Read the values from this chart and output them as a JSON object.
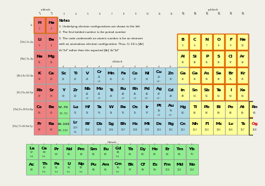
{
  "bg": "#f0f0e8",
  "s_color": "#f08080",
  "p_color": "#ffff99",
  "d_color": "#add8e6",
  "f_color": "#90ee90",
  "white": "#ffffff",
  "notes_lines": [
    "Notes",
    "1. Underlying electron configurations are shown to the left",
    "2. The first bolded number is the period number",
    "3. The code underneath an atomic number is for an element",
    "with an anomalous electron configuration. Thus, Cr 24 is [Ar]",
    "4s¹3d⁵ rather than the expected [Ar] 4s²3d⁴"
  ],
  "period_labels": [
    "1s",
    "[He] 2s,2p",
    "[Ne] 3s,3p",
    "[Ar] 4s,3d,4p",
    "[Kr] 5s,4d,5p",
    "[Xe] 6s,4f,5d,6p",
    "[Rn] 7s,5f,6d,7p"
  ],
  "elements": [
    {
      "sym": "H",
      "num": "1",
      "row": 1,
      "col": 1,
      "blk": "s",
      "scope": true
    },
    {
      "sym": "He",
      "num": "2",
      "row": 1,
      "col": 2,
      "blk": "s",
      "scope": true
    },
    {
      "sym": "Li",
      "num": "3",
      "row": 2,
      "col": 1,
      "blk": "s",
      "scope": false
    },
    {
      "sym": "Be",
      "num": "4",
      "row": 2,
      "col": 2,
      "blk": "s",
      "scope": false
    },
    {
      "sym": "B",
      "num": "5",
      "row": 2,
      "col": 13,
      "blk": "p",
      "scope": true
    },
    {
      "sym": "C",
      "num": "6",
      "row": 2,
      "col": 14,
      "blk": "p",
      "scope": true
    },
    {
      "sym": "N",
      "num": "7",
      "row": 2,
      "col": 15,
      "blk": "p",
      "scope": true
    },
    {
      "sym": "O",
      "num": "8",
      "row": 2,
      "col": 16,
      "blk": "p",
      "scope": true
    },
    {
      "sym": "F",
      "num": "9",
      "row": 2,
      "col": 17,
      "blk": "p",
      "scope": true
    },
    {
      "sym": "Ne",
      "num": "10",
      "row": 2,
      "col": 18,
      "blk": "p",
      "scope": true
    },
    {
      "sym": "Na",
      "num": "11",
      "row": 3,
      "col": 1,
      "blk": "s",
      "scope": false
    },
    {
      "sym": "Mg",
      "num": "12",
      "row": 3,
      "col": 2,
      "blk": "s",
      "scope": false
    },
    {
      "sym": "Al",
      "num": "13",
      "row": 3,
      "col": 13,
      "blk": "p",
      "scope": false
    },
    {
      "sym": "Si",
      "num": "14",
      "row": 3,
      "col": 14,
      "blk": "p",
      "scope": true
    },
    {
      "sym": "P",
      "num": "15",
      "row": 3,
      "col": 15,
      "blk": "p",
      "scope": true
    },
    {
      "sym": "S",
      "num": "16",
      "row": 3,
      "col": 16,
      "blk": "p",
      "scope": true
    },
    {
      "sym": "Cl",
      "num": "17",
      "row": 3,
      "col": 17,
      "blk": "p",
      "scope": true
    },
    {
      "sym": "Ar",
      "num": "18",
      "row": 3,
      "col": 18,
      "blk": "p",
      "scope": true
    },
    {
      "sym": "K",
      "num": "19",
      "row": 4,
      "col": 1,
      "blk": "s",
      "scope": false
    },
    {
      "sym": "Ca",
      "num": "20",
      "row": 4,
      "col": 2,
      "blk": "s",
      "scope": false
    },
    {
      "sym": "Sc",
      "num": "21",
      "row": 4,
      "col": 3,
      "blk": "d",
      "scope": false
    },
    {
      "sym": "Ti",
      "num": "22",
      "row": 4,
      "col": 4,
      "blk": "d",
      "scope": false
    },
    {
      "sym": "V",
      "num": "23",
      "row": 4,
      "col": 5,
      "blk": "d",
      "scope": false
    },
    {
      "sym": "Cr",
      "num": "24",
      "row": 4,
      "col": 6,
      "blk": "d",
      "scope": false,
      "sub": "s¹d⁵"
    },
    {
      "sym": "Mn",
      "num": "25",
      "row": 4,
      "col": 7,
      "blk": "d",
      "scope": false
    },
    {
      "sym": "Fe",
      "num": "26",
      "row": 4,
      "col": 8,
      "blk": "d",
      "scope": false
    },
    {
      "sym": "Co",
      "num": "27",
      "row": 4,
      "col": 9,
      "blk": "d",
      "scope": false
    },
    {
      "sym": "Ni",
      "num": "28",
      "row": 4,
      "col": 10,
      "blk": "d",
      "scope": false
    },
    {
      "sym": "Cu",
      "num": "29",
      "row": 4,
      "col": 11,
      "blk": "d",
      "scope": false,
      "sub": "s¹d¹⁰"
    },
    {
      "sym": "Zn",
      "num": "30",
      "row": 4,
      "col": 12,
      "blk": "d",
      "scope": false
    },
    {
      "sym": "Ga",
      "num": "31",
      "row": 4,
      "col": 13,
      "blk": "p",
      "scope": false
    },
    {
      "sym": "Ge",
      "num": "32",
      "row": 4,
      "col": 14,
      "blk": "p",
      "scope": true
    },
    {
      "sym": "As",
      "num": "33",
      "row": 4,
      "col": 15,
      "blk": "p",
      "scope": true
    },
    {
      "sym": "Se",
      "num": "34",
      "row": 4,
      "col": 16,
      "blk": "p",
      "scope": true
    },
    {
      "sym": "Br",
      "num": "35",
      "row": 4,
      "col": 17,
      "blk": "p",
      "scope": true
    },
    {
      "sym": "Kr",
      "num": "36",
      "row": 4,
      "col": 18,
      "blk": "p",
      "scope": true
    },
    {
      "sym": "Rb",
      "num": "37",
      "row": 5,
      "col": 1,
      "blk": "s",
      "scope": false
    },
    {
      "sym": "Sr",
      "num": "38",
      "row": 5,
      "col": 2,
      "blk": "s",
      "scope": false
    },
    {
      "sym": "Y",
      "num": "39",
      "row": 5,
      "col": 3,
      "blk": "d",
      "scope": false
    },
    {
      "sym": "Zr",
      "num": "40",
      "row": 5,
      "col": 4,
      "blk": "d",
      "scope": false
    },
    {
      "sym": "Nb",
      "num": "41",
      "row": 5,
      "col": 5,
      "blk": "d",
      "scope": false,
      "sub": "s¹d⁴"
    },
    {
      "sym": "Mo",
      "num": "42",
      "row": 5,
      "col": 6,
      "blk": "d",
      "scope": false,
      "sub": "s¹d⁵"
    },
    {
      "sym": "Tc",
      "num": "43",
      "row": 5,
      "col": 7,
      "blk": "d",
      "scope": false
    },
    {
      "sym": "Ru",
      "num": "44",
      "row": 5,
      "col": 8,
      "blk": "d",
      "scope": false,
      "sub": "s¹d⁷"
    },
    {
      "sym": "Rh",
      "num": "45",
      "row": 5,
      "col": 9,
      "blk": "d",
      "scope": false,
      "sub": "s¹d⁸"
    },
    {
      "sym": "Pd",
      "num": "46",
      "row": 5,
      "col": 10,
      "blk": "d",
      "scope": false,
      "sub": "s⁰d¹⁰"
    },
    {
      "sym": "Ag",
      "num": "47",
      "row": 5,
      "col": 11,
      "blk": "d",
      "scope": false,
      "sub": "s¹d¹⁰"
    },
    {
      "sym": "Cd",
      "num": "48",
      "row": 5,
      "col": 12,
      "blk": "d",
      "scope": false
    },
    {
      "sym": "In",
      "num": "49",
      "row": 5,
      "col": 13,
      "blk": "p",
      "scope": false
    },
    {
      "sym": "Sn",
      "num": "50",
      "row": 5,
      "col": 14,
      "blk": "p",
      "scope": false
    },
    {
      "sym": "Sb",
      "num": "51",
      "row": 5,
      "col": 15,
      "blk": "p",
      "scope": true
    },
    {
      "sym": "Te",
      "num": "52",
      "row": 5,
      "col": 16,
      "blk": "p",
      "scope": true
    },
    {
      "sym": "I",
      "num": "53",
      "row": 5,
      "col": 17,
      "blk": "p",
      "scope": true
    },
    {
      "sym": "Xe",
      "num": "54",
      "row": 5,
      "col": 18,
      "blk": "p",
      "scope": true
    },
    {
      "sym": "Cs",
      "num": "55",
      "row": 6,
      "col": 1,
      "blk": "s",
      "scope": false
    },
    {
      "sym": "Ba",
      "num": "56",
      "row": 6,
      "col": 2,
      "blk": "s",
      "scope": false
    },
    {
      "sym": "57–70",
      "num": "57–70",
      "row": 6,
      "col": 3,
      "blk": "fref",
      "scope": false
    },
    {
      "sym": "Lu",
      "num": "71",
      "row": 6,
      "col": 4,
      "blk": "d",
      "scope": false
    },
    {
      "sym": "Hf",
      "num": "72",
      "row": 6,
      "col": 5,
      "blk": "d",
      "scope": false
    },
    {
      "sym": "Ta",
      "num": "73",
      "row": 6,
      "col": 6,
      "blk": "d",
      "scope": false
    },
    {
      "sym": "W",
      "num": "74",
      "row": 6,
      "col": 7,
      "blk": "d",
      "scope": false
    },
    {
      "sym": "Re",
      "num": "75",
      "row": 6,
      "col": 8,
      "blk": "d",
      "scope": false
    },
    {
      "sym": "Os",
      "num": "76",
      "row": 6,
      "col": 9,
      "blk": "d",
      "scope": false
    },
    {
      "sym": "Ir",
      "num": "77",
      "row": 6,
      "col": 10,
      "blk": "d",
      "scope": false
    },
    {
      "sym": "Pt",
      "num": "78",
      "row": 6,
      "col": 11,
      "blk": "d",
      "scope": false,
      "sub": "s¹d⁹"
    },
    {
      "sym": "Au",
      "num": "79",
      "row": 6,
      "col": 12,
      "blk": "d",
      "scope": false,
      "sub": "s¹d¹⁰"
    },
    {
      "sym": "Hg",
      "num": "80",
      "row": 6,
      "col": 13,
      "blk": "d",
      "scope": false
    },
    {
      "sym": "Tl",
      "num": "81",
      "row": 6,
      "col": 14,
      "blk": "p",
      "scope": false
    },
    {
      "sym": "Pb",
      "num": "82",
      "row": 6,
      "col": 15,
      "blk": "p",
      "scope": false
    },
    {
      "sym": "Bi",
      "num": "83",
      "row": 6,
      "col": 16,
      "blk": "p",
      "scope": false
    },
    {
      "sym": "Po",
      "num": "84",
      "row": 6,
      "col": 17,
      "blk": "p",
      "scope": false
    },
    {
      "sym": "At",
      "num": "85",
      "row": 6,
      "col": 18,
      "blk": "p",
      "scope": false
    },
    {
      "sym": "Rn",
      "num": "86",
      "row": 6,
      "col": 19,
      "blk": "p",
      "scope": true,
      "box": true
    },
    {
      "sym": "Fr",
      "num": "87",
      "row": 7,
      "col": 1,
      "blk": "s",
      "scope": false
    },
    {
      "sym": "Ra",
      "num": "88",
      "row": 7,
      "col": 2,
      "blk": "s",
      "scope": false
    },
    {
      "sym": "89–102",
      "num": "89–102",
      "row": 7,
      "col": 3,
      "blk": "fref",
      "scope": false
    },
    {
      "sym": "Lr",
      "num": "103",
      "row": 7,
      "col": 4,
      "blk": "d",
      "scope": false,
      "sub": "d¹p"
    },
    {
      "sym": "Rf",
      "num": "104",
      "row": 7,
      "col": 5,
      "blk": "d",
      "scope": false
    },
    {
      "sym": "Db",
      "num": "105",
      "row": 7,
      "col": 6,
      "blk": "d",
      "scope": false
    },
    {
      "sym": "Sg",
      "num": "106",
      "row": 7,
      "col": 7,
      "blk": "d",
      "scope": false
    },
    {
      "sym": "Bh",
      "num": "107",
      "row": 7,
      "col": 8,
      "blk": "d",
      "scope": false
    },
    {
      "sym": "Hs",
      "num": "108",
      "row": 7,
      "col": 9,
      "blk": "d",
      "scope": false
    },
    {
      "sym": "Mt",
      "num": "109",
      "row": 7,
      "col": 10,
      "blk": "d",
      "scope": false
    },
    {
      "sym": "Ds",
      "num": "110",
      "row": 7,
      "col": 11,
      "blk": "d",
      "scope": false
    },
    {
      "sym": "Rg",
      "num": "111",
      "row": 7,
      "col": 12,
      "blk": "d",
      "scope": false
    },
    {
      "sym": "Cn",
      "num": "112",
      "row": 7,
      "col": 13,
      "blk": "d",
      "scope": false
    },
    {
      "sym": "Nh",
      "num": "113",
      "row": 7,
      "col": 14,
      "blk": "p",
      "scope": false
    },
    {
      "sym": "Fl",
      "num": "114",
      "row": 7,
      "col": 15,
      "blk": "p",
      "scope": false
    },
    {
      "sym": "Mc",
      "num": "115",
      "row": 7,
      "col": 16,
      "blk": "p",
      "scope": false
    },
    {
      "sym": "Lv",
      "num": "116",
      "row": 7,
      "col": 17,
      "blk": "p",
      "scope": false
    },
    {
      "sym": "Ts",
      "num": "117",
      "row": 7,
      "col": 18,
      "blk": "p",
      "scope": false
    },
    {
      "sym": "Og",
      "num": "118",
      "row": 7,
      "col": 19,
      "blk": "p",
      "scope": false,
      "red": true,
      "box": true
    },
    {
      "sym": "La",
      "num": "57",
      "frow": 1,
      "fcol": 1,
      "blk": "f",
      "scope": false,
      "sub": "f¹sd"
    },
    {
      "sym": "Ce",
      "num": "58",
      "frow": 1,
      "fcol": 2,
      "blk": "f",
      "scope": false,
      "sub": "f¹sd"
    },
    {
      "sym": "Pr",
      "num": "59",
      "frow": 1,
      "fcol": 3,
      "blk": "f",
      "scope": false
    },
    {
      "sym": "Nd",
      "num": "60",
      "frow": 1,
      "fcol": 4,
      "blk": "f",
      "scope": false
    },
    {
      "sym": "Pm",
      "num": "61",
      "frow": 1,
      "fcol": 5,
      "blk": "f",
      "scope": false
    },
    {
      "sym": "Sm",
      "num": "62",
      "frow": 1,
      "fcol": 6,
      "blk": "f",
      "scope": false
    },
    {
      "sym": "Eu",
      "num": "63",
      "frow": 1,
      "fcol": 7,
      "blk": "f",
      "scope": false
    },
    {
      "sym": "Gd",
      "num": "64",
      "frow": 1,
      "fcol": 8,
      "blk": "f",
      "scope": false,
      "sub": "f⁷sd"
    },
    {
      "sym": "Tb",
      "num": "65",
      "frow": 1,
      "fcol": 9,
      "blk": "f",
      "scope": false
    },
    {
      "sym": "Dy",
      "num": "66",
      "frow": 1,
      "fcol": 10,
      "blk": "f",
      "scope": false
    },
    {
      "sym": "Ho",
      "num": "67",
      "frow": 1,
      "fcol": 11,
      "blk": "f",
      "scope": false
    },
    {
      "sym": "Er",
      "num": "68",
      "frow": 1,
      "fcol": 12,
      "blk": "f",
      "scope": false
    },
    {
      "sym": "Tm",
      "num": "69",
      "frow": 1,
      "fcol": 13,
      "blk": "f",
      "scope": false
    },
    {
      "sym": "Yb",
      "num": "70",
      "frow": 1,
      "fcol": 14,
      "blk": "f",
      "scope": false
    },
    {
      "sym": "Ac",
      "num": "89",
      "frow": 2,
      "fcol": 1,
      "blk": "f",
      "scope": false
    },
    {
      "sym": "Th",
      "num": "90",
      "frow": 2,
      "fcol": 2,
      "blk": "f",
      "scope": false,
      "sub": "f⁰sd²"
    },
    {
      "sym": "Pa",
      "num": "91",
      "frow": 2,
      "fcol": 3,
      "blk": "f",
      "scope": false,
      "sub": "f²sd"
    },
    {
      "sym": "U",
      "num": "92",
      "frow": 2,
      "fcol": 4,
      "blk": "f",
      "scope": false,
      "sub": "f³sd"
    },
    {
      "sym": "Np",
      "num": "93",
      "frow": 2,
      "fcol": 5,
      "blk": "f",
      "scope": false,
      "sub": "f⁴sd"
    },
    {
      "sym": "Pu",
      "num": "94",
      "frow": 2,
      "fcol": 6,
      "blk": "f",
      "scope": false
    },
    {
      "sym": "Am",
      "num": "95",
      "frow": 2,
      "fcol": 7,
      "blk": "f",
      "scope": false
    },
    {
      "sym": "Cm",
      "num": "96",
      "frow": 2,
      "fcol": 8,
      "blk": "f",
      "scope": false,
      "sub": "f⁷sd"
    },
    {
      "sym": "Bk",
      "num": "97",
      "frow": 2,
      "fcol": 9,
      "blk": "f",
      "scope": false
    },
    {
      "sym": "Cf",
      "num": "98",
      "frow": 2,
      "fcol": 10,
      "blk": "f",
      "scope": false
    },
    {
      "sym": "Es",
      "num": "99",
      "frow": 2,
      "fcol": 11,
      "blk": "f",
      "scope": false
    },
    {
      "sym": "Fm",
      "num": "100",
      "frow": 2,
      "fcol": 12,
      "blk": "f",
      "scope": false
    },
    {
      "sym": "Md",
      "num": "101",
      "frow": 2,
      "fcol": 13,
      "blk": "f",
      "scope": false
    },
    {
      "sym": "No",
      "num": "102",
      "frow": 2,
      "fcol": 14,
      "blk": "f",
      "scope": false
    }
  ]
}
